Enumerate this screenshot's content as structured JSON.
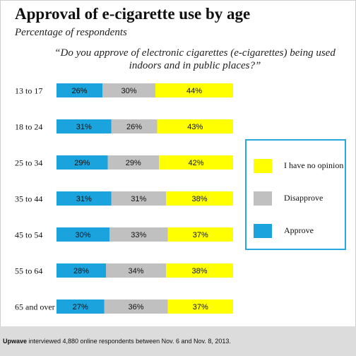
{
  "title": "Approval of e-cigarette use by age",
  "subtitle": "Percentage of respondents",
  "question": "“Do you approve of electronic cigarettes (e-cigarettes) being used indoors and in public places?”",
  "footer": {
    "brand": "Upwave",
    "text": " interviewed 4,880 online respondents between Nov. 6 and Nov. 8, 2013."
  },
  "colors": {
    "approve": "#1aa3dc",
    "disapprove": "#c0c0c0",
    "no_opinion": "#ffff00",
    "legend_border": "#29a8e0",
    "footer_bg": "#dcdcdc"
  },
  "legend": [
    {
      "label": "I have no opinion",
      "color": "#ffff00"
    },
    {
      "label": "Disapprove",
      "color": "#c0c0c0"
    },
    {
      "label": "Approve",
      "color": "#1aa3dc"
    }
  ],
  "chart_data": {
    "type": "bar",
    "orientation": "horizontal",
    "stacked": true,
    "categories": [
      "13 to 17",
      "18 to 24",
      "25 to 34",
      "35 to 44",
      "45 to 54",
      "55 to 64",
      "65 and over"
    ],
    "series": [
      {
        "name": "Approve",
        "color": "#1aa3dc",
        "values": [
          26,
          31,
          29,
          31,
          30,
          28,
          27
        ]
      },
      {
        "name": "Disapprove",
        "color": "#c0c0c0",
        "values": [
          30,
          26,
          29,
          31,
          33,
          34,
          36
        ]
      },
      {
        "name": "I have no opinion",
        "color": "#ffff00",
        "values": [
          44,
          43,
          42,
          38,
          37,
          38,
          37
        ]
      }
    ],
    "value_suffix": "%",
    "xlim": [
      0,
      100
    ],
    "legend_position": "right"
  }
}
